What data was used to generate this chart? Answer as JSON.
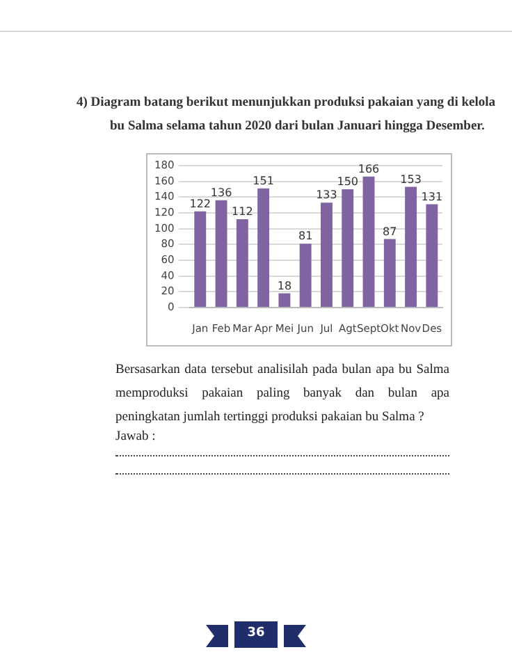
{
  "chart_data": {
    "type": "bar",
    "title": "4)  Diagram batang berikut menunjukkan produksi pakaian yang di kelola bu Salma selama tahun 2020 dari bulan Januari hingga Desember.",
    "categories": [
      "Jan",
      "Feb",
      "Mar",
      "Apr",
      "Mei",
      "Jun",
      "Jul",
      "Agt",
      "Sept",
      "Okt",
      "Nov",
      "Des"
    ],
    "values": [
      122,
      136,
      112,
      151,
      18,
      81,
      133,
      150,
      166,
      87,
      153,
      131
    ],
    "color": "#8064a2",
    "ylim": [
      0,
      180
    ],
    "yticks": [
      0,
      20,
      40,
      60,
      80,
      100,
      120,
      140,
      160,
      180
    ],
    "grid": "y",
    "legend": false,
    "data_labels": true,
    "annotations": [
      "Bersasarkan data tersebut analisilah pada bulan apa bu Salma memproduksi pakaian paling banyak dan bulan apa peningkatan jumlah tertinggi produksi pakaian bu Salma ?",
      "Jawab :",
      "36"
    ]
  }
}
